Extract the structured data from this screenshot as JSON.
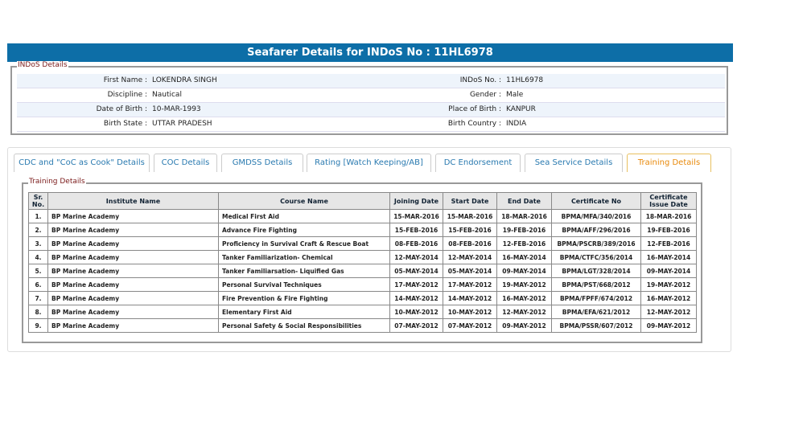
{
  "header": {
    "title": "Seafarer Details for INDoS No : 11HL6978"
  },
  "personal": {
    "legend": "INDoS Details",
    "rows": [
      [
        {
          "label": "First Name :",
          "value": "LOKENDRA SINGH"
        },
        {
          "label": "INDoS No. :",
          "value": "11HL6978"
        }
      ],
      [
        {
          "label": "Discipline :",
          "value": "Nautical"
        },
        {
          "label": "Gender :",
          "value": "Male"
        }
      ],
      [
        {
          "label": "Date of Birth :",
          "value": "10-MAR-1993"
        },
        {
          "label": "Place of Birth :",
          "value": "KANPUR"
        }
      ],
      [
        {
          "label": "Birth State :",
          "value": "UTTAR PRADESH"
        },
        {
          "label": "Birth Country :",
          "value": "INDIA"
        }
      ]
    ]
  },
  "tabs": [
    "CDC and \"CoC as Cook\" Details",
    "COC Details",
    "GMDSS Details",
    "Rating [Watch Keeping/AB]",
    "DC Endorsement",
    "Sea Service Details",
    "Training Details"
  ],
  "active_tab": 6,
  "training": {
    "legend": "Training Details",
    "columns": [
      "Sr. No.",
      "Institute Name",
      "Course Name",
      "Joining Date",
      "Start Date",
      "End Date",
      "Certificate No",
      "Certificate Issue Date"
    ],
    "rows": [
      [
        "1.",
        "BP Marine Academy",
        "Medical First Aid",
        "15-MAR-2016",
        "15-MAR-2016",
        "18-MAR-2016",
        "BPMA/MFA/340/2016",
        "18-MAR-2016"
      ],
      [
        "2.",
        "BP Marine Academy",
        "Advance Fire Fighting",
        "15-FEB-2016",
        "15-FEB-2016",
        "19-FEB-2016",
        "BPMA/AFF/296/2016",
        "19-FEB-2016"
      ],
      [
        "3.",
        "BP Marine Academy",
        "Proficiency in Survival Craft & Rescue Boat",
        "08-FEB-2016",
        "08-FEB-2016",
        "12-FEB-2016",
        "BPMA/PSCRB/389/2016",
        "12-FEB-2016"
      ],
      [
        "4.",
        "BP Marine Academy",
        "Tanker Familiarization- Chemical",
        "12-MAY-2014",
        "12-MAY-2014",
        "16-MAY-2014",
        "BPMA/CTFC/356/2014",
        "16-MAY-2014"
      ],
      [
        "5.",
        "BP Marine Academy",
        "Tanker Familiarsation- Liquified Gas",
        "05-MAY-2014",
        "05-MAY-2014",
        "09-MAY-2014",
        "BPMA/LGT/328/2014",
        "09-MAY-2014"
      ],
      [
        "6.",
        "BP Marine Academy",
        "Personal Survival Techniques",
        "17-MAY-2012",
        "17-MAY-2012",
        "19-MAY-2012",
        "BPMA/PST/668/2012",
        "19-MAY-2012"
      ],
      [
        "7.",
        "BP Marine Academy",
        "Fire Prevention & Fire Fighting",
        "14-MAY-2012",
        "14-MAY-2012",
        "16-MAY-2012",
        "BPMA/FPFF/674/2012",
        "16-MAY-2012"
      ],
      [
        "8.",
        "BP Marine Academy",
        "Elementary First Aid",
        "10-MAY-2012",
        "10-MAY-2012",
        "12-MAY-2012",
        "BPMA/EFA/621/2012",
        "12-MAY-2012"
      ],
      [
        "9.",
        "BP Marine Academy",
        "Personal Safety & Social Responsibilities",
        "07-MAY-2012",
        "07-MAY-2012",
        "09-MAY-2012",
        "BPMA/PSSR/607/2012",
        "09-MAY-2012"
      ]
    ]
  }
}
